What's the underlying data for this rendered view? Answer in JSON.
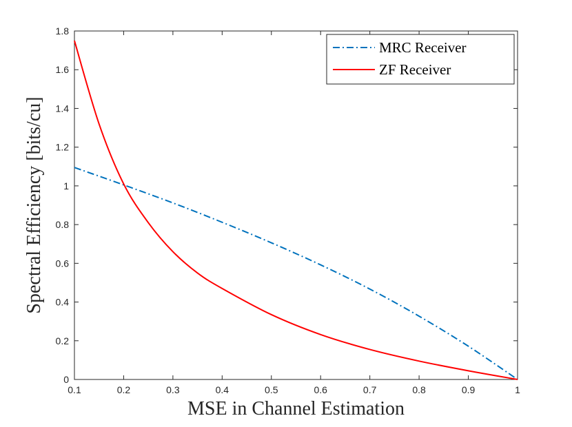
{
  "chart_data": {
    "type": "line",
    "title": "",
    "xlabel": "MSE in Channel Estimation",
    "ylabel": "Spectral Efficiency [bits/cu]",
    "xlim": [
      0.1,
      1
    ],
    "ylim": [
      0,
      1.8
    ],
    "xticks": [
      0.1,
      0.2,
      0.3,
      0.4,
      0.5,
      0.6,
      0.7,
      0.8,
      0.9,
      1
    ],
    "xtick_labels": [
      "0.1",
      "0.2",
      "0.3",
      "0.4",
      "0.5",
      "0.6",
      "0.7",
      "0.8",
      "0.9",
      "1"
    ],
    "yticks": [
      0,
      0.2,
      0.4,
      0.6,
      0.8,
      1,
      1.2,
      1.4,
      1.6,
      1.8
    ],
    "ytick_labels": [
      "0",
      "0.2",
      "0.4",
      "0.6",
      "0.8",
      "1",
      "1.2",
      "1.4",
      "1.6",
      "1.8"
    ],
    "grid": false,
    "legend_position": "top-right",
    "series": [
      {
        "name": "MRC Receiver",
        "color": "#0072BD",
        "style": "dash-dot",
        "x": [
          0.1,
          0.2,
          0.3,
          0.4,
          0.5,
          0.6,
          0.7,
          0.8,
          0.9,
          1.0
        ],
        "y": [
          1.095,
          1.005,
          0.912,
          0.812,
          0.706,
          0.592,
          0.467,
          0.327,
          0.172,
          0.0
        ]
      },
      {
        "name": "ZF Receiver",
        "color": "#FF0000",
        "style": "solid",
        "x": [
          0.1,
          0.15,
          0.2,
          0.25,
          0.3,
          0.35,
          0.4,
          0.5,
          0.6,
          0.7,
          0.8,
          0.9,
          1.0
        ],
        "y": [
          1.75,
          1.32,
          1.01,
          0.81,
          0.66,
          0.55,
          0.47,
          0.335,
          0.232,
          0.155,
          0.095,
          0.045,
          0.0
        ]
      }
    ]
  }
}
